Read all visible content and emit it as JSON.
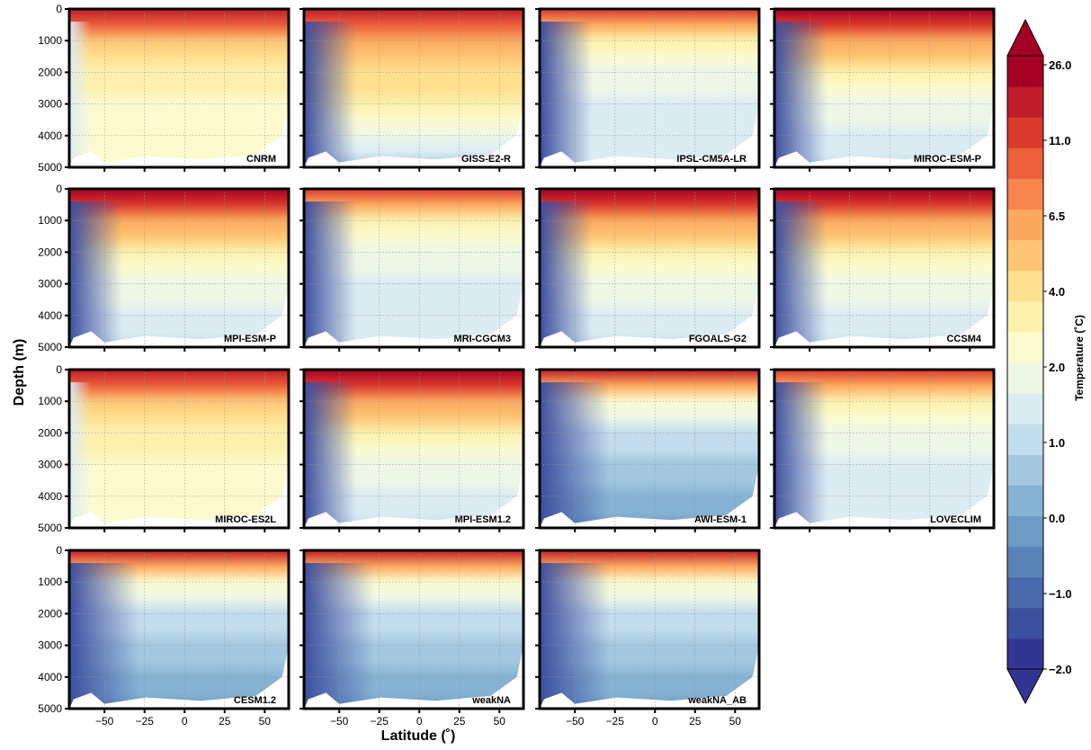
{
  "chart_data": {
    "type": "heatmap",
    "description": "Zonal-mean ocean temperature sections (latitude vs depth) for 15 model simulations",
    "xlabel": "Latitude (˚)",
    "ylabel": "Depth (m)",
    "xlim": [
      -72,
      65
    ],
    "xticks": [
      -50,
      -25,
      0,
      25,
      50
    ],
    "xtick_labels": [
      "−50",
      "−25",
      "0",
      "25",
      "50"
    ],
    "ylim": [
      5000,
      0
    ],
    "yticks": [
      0,
      1000,
      2000,
      3000,
      4000,
      5000
    ],
    "ytick_labels": [
      "0",
      "1000",
      "2000",
      "3000",
      "4000",
      "5000"
    ],
    "grid": true,
    "colorbar": {
      "label": "Temperature (˚C)",
      "tick_values": [
        -2.0,
        -1.0,
        0.0,
        1.0,
        2.0,
        4.0,
        6.5,
        11.0,
        26.0
      ],
      "tick_labels": [
        "−2.0",
        "−1.0",
        "0.0",
        "1.0",
        "2.0",
        "4.0",
        "6.5",
        "11.0",
        "26.0"
      ],
      "extend": "both",
      "colors": [
        "#313695",
        "#3d4f9f",
        "#4a6aab",
        "#5a83b8",
        "#6d9bc6",
        "#86b2d3",
        "#a3c8e0",
        "#c2dded",
        "#dcecf3",
        "#eef7e6",
        "#fbfbcf",
        "#fdf0ad",
        "#fee08f",
        "#fdc574",
        "#fca85e",
        "#f7854d",
        "#ec5f3b",
        "#da3a2d",
        "#c01d2a",
        "#a50026"
      ]
    },
    "panels": [
      {
        "name": "CNRM",
        "profile": "warm"
      },
      {
        "name": "GISS-E2-R",
        "profile": "giss"
      },
      {
        "name": "IPSL-CM5A-LR",
        "profile": "cool"
      },
      {
        "name": "MIROC-ESM-P",
        "profile": "medium"
      },
      {
        "name": "MPI-ESM-P",
        "profile": "medium"
      },
      {
        "name": "MRI-CGCM3",
        "profile": "cool"
      },
      {
        "name": "FGOALS-G2",
        "profile": "medium"
      },
      {
        "name": "CCSM4",
        "profile": "medium"
      },
      {
        "name": "MIROC-ES2L",
        "profile": "warm"
      },
      {
        "name": "MPI-ESM1.2",
        "profile": "medium"
      },
      {
        "name": "AWI-ESM-1",
        "profile": "cold"
      },
      {
        "name": "LOVECLIM",
        "profile": "cool"
      },
      {
        "name": "CESM1.2",
        "profile": "cold"
      },
      {
        "name": "weakNA",
        "profile": "cold"
      },
      {
        "name": "weakNA_AB",
        "profile": "cold"
      }
    ]
  }
}
